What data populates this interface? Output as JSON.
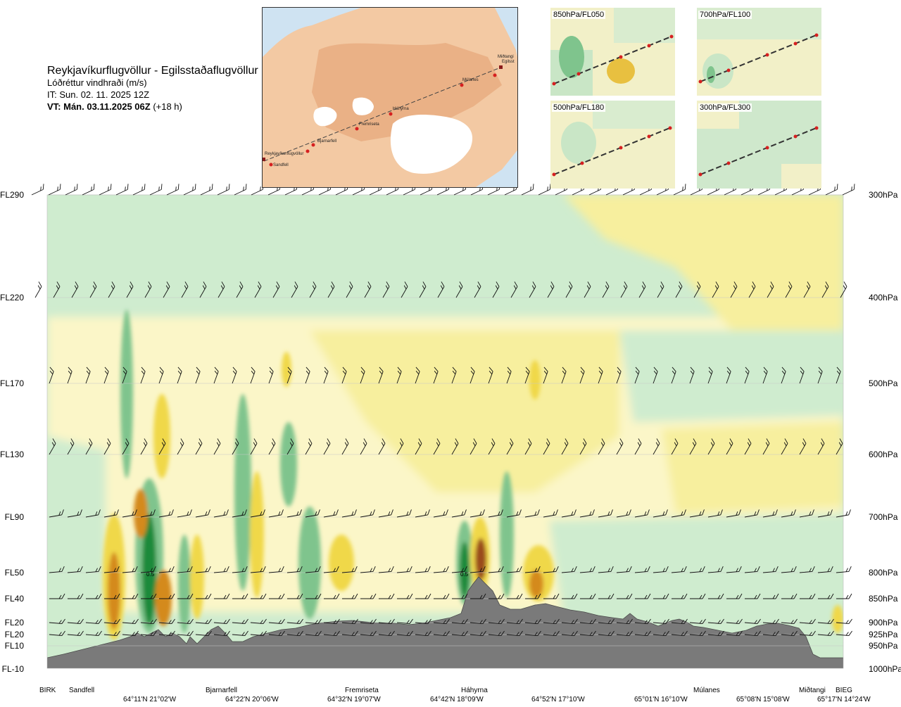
{
  "header": {
    "route": "Reykjavíkurflugvöllur - Egilsstaðaflugvöllur",
    "variable": "Lóðréttur vindhraði (m/s)",
    "issued": "IT: Sun. 02. 11. 2025 12Z",
    "valid_bold": "VT: Mán. 03.11.2025 06Z",
    "valid_suffix": " (+18 h)"
  },
  "map": {
    "waypoints": [
      {
        "label": "Reykjavíkurflugvöllur"
      },
      {
        "label": "Sandfell"
      },
      {
        "label": "Bjarnarfell"
      },
      {
        "label": "Fremriseta"
      },
      {
        "label": "Háhyrna"
      },
      {
        "label": "Múlanes"
      },
      {
        "label": "Miðtangi"
      },
      {
        "label": "Egilsst"
      }
    ]
  },
  "thumbnails": [
    {
      "label": "850hPa/FL050"
    },
    {
      "label": "700hPa/FL100"
    },
    {
      "label": "500hPa/FL180"
    },
    {
      "label": "300hPa/FL300"
    }
  ],
  "chart_data": {
    "type": "heatmap",
    "title": "Lóðréttur vindhraði (m/s)",
    "left_axis_labels": [
      "FL290",
      "FL220",
      "FL170",
      "FL130",
      "FL90",
      "FL50",
      "FL40",
      "FL20",
      "FL20",
      "FL10",
      "FL-10"
    ],
    "right_axis_labels": [
      "300hPa",
      "400hPa",
      "500hPa",
      "600hPa",
      "700hPa",
      "800hPa",
      "850hPa",
      "900hPa",
      "925hPa",
      "950hPa",
      "1000hPa"
    ],
    "pressure_levels_hPa": [
      300,
      400,
      500,
      600,
      700,
      800,
      850,
      900,
      925,
      950,
      1000
    ],
    "x_locations": [
      "BIRK",
      "Sandfell",
      "Bjarnarfell",
      "Fremriseta",
      "Háhyrna",
      "Múlanes",
      "Miðtangi",
      "BIEG"
    ],
    "x_coordinates": [
      "64°11'N 21°02'W",
      "64°22'N 20°06'W",
      "64°32'N 19°07'W",
      "64°42'N 18°09'W",
      "64°52'N 17°10'W",
      "65°01'N 16°10'W",
      "65°08'N 15°08'W",
      "65°17'N 14°24'W"
    ],
    "contour_labels": [
      "0.5",
      "0.5"
    ],
    "colors": {
      "terrain": "#7a7a7a",
      "down_strong": "#1f8a3a",
      "down_mid": "#7fc48d",
      "down_weak": "#d2ecd2",
      "neutral": "#fbfbe6",
      "up_weak": "#f7ef9e",
      "up_mid": "#f0d848",
      "up_strong": "#d48a1f",
      "up_extreme": "#9a4b1a"
    }
  }
}
